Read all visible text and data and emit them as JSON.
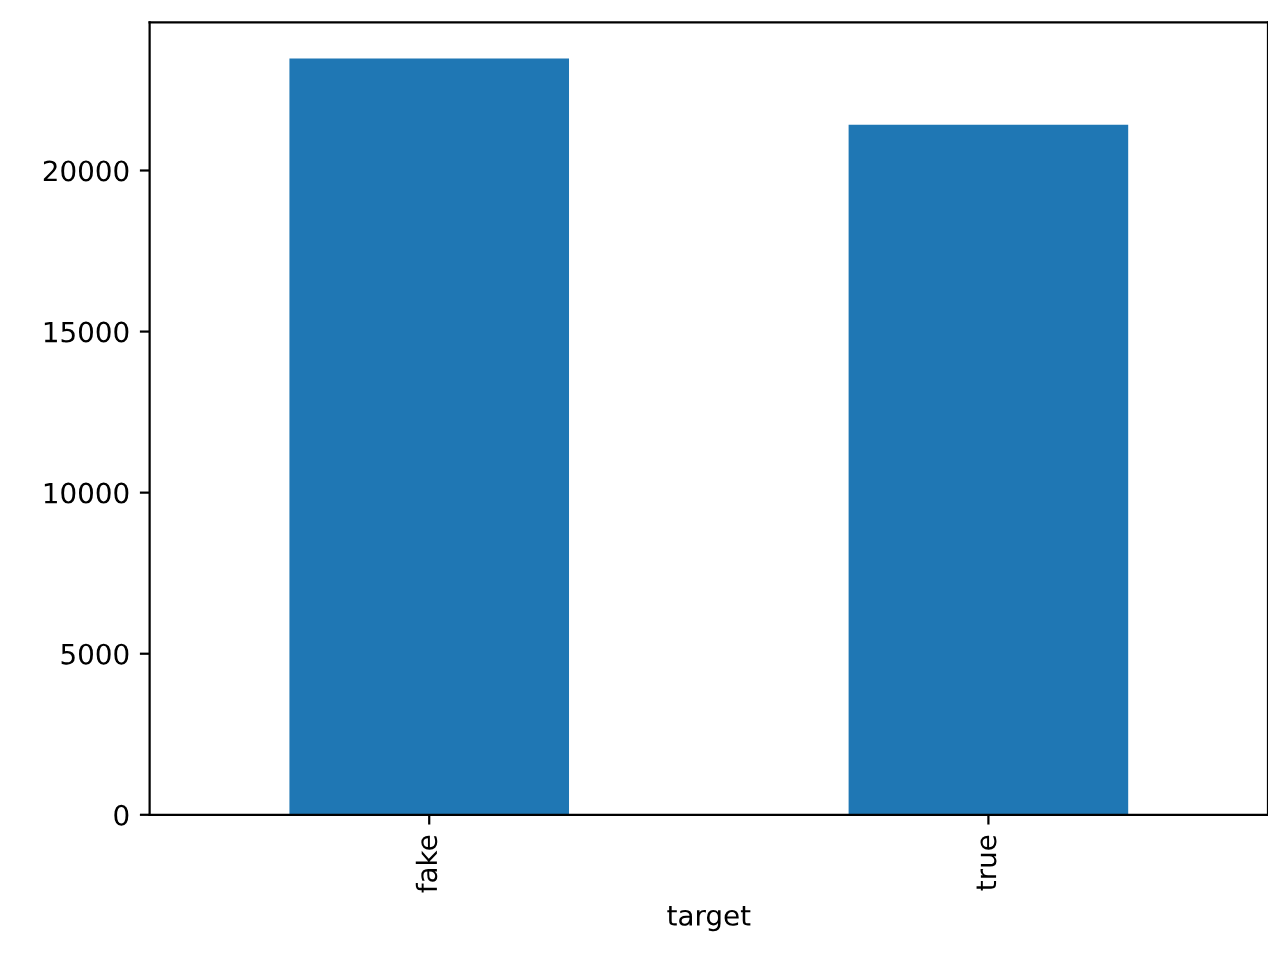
{
  "chart_data": {
    "type": "bar",
    "xlabel": "target",
    "categories": [
      "fake",
      "true"
    ],
    "values": [
      23480,
      21420
    ],
    "color": "#1f77b4",
    "ylim": [
      0,
      24600
    ],
    "yticks": [
      0,
      5000,
      10000,
      15000,
      20000
    ],
    "grid": false,
    "legend": false
  }
}
